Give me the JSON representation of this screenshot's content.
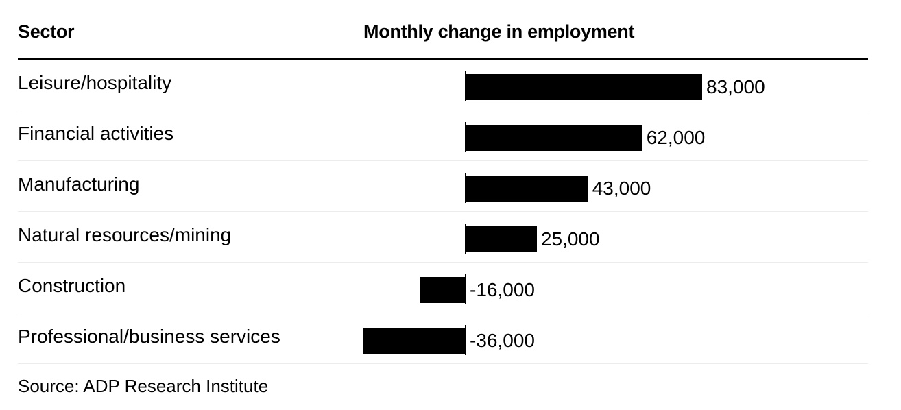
{
  "headers": {
    "sector": "Sector",
    "change": "Monthly change in employment"
  },
  "source": "Source: ADP Research Institute",
  "colors": {
    "bar": "#000000",
    "text": "#000000",
    "rule": "#000000",
    "separator": "#ececec",
    "background": "#ffffff"
  },
  "chart_data": {
    "type": "bar",
    "orientation": "horizontal",
    "title": "",
    "xlabel": "Monthly change in employment",
    "ylabel": "Sector",
    "categories": [
      "Leisure/hospitality",
      "Financial activities",
      "Manufacturing",
      "Natural resources/mining",
      "Construction",
      "Professional/business services"
    ],
    "values": [
      83000,
      62000,
      43000,
      25000,
      -16000,
      -36000
    ],
    "value_labels": [
      "83,000",
      "62,000",
      "43,000",
      "25,000",
      "-16,000",
      "-36,000"
    ],
    "xlim": [
      -36000,
      83000
    ],
    "grid": false,
    "legend": "none"
  }
}
